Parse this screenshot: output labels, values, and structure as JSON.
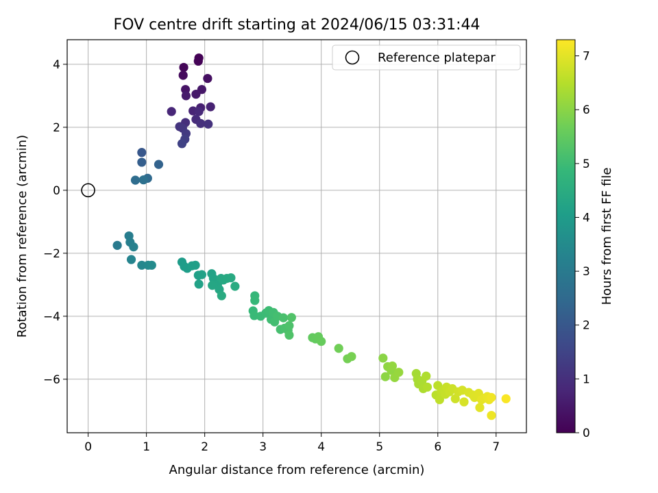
{
  "chart_data": {
    "type": "scatter",
    "title": "FOV centre drift starting at 2024/06/15 03:31:44",
    "xlabel": "Angular distance from reference (arcmin)",
    "ylabel": "Rotation from reference (arcmin)",
    "xlim": [
      -0.36,
      7.52
    ],
    "ylim": [
      -7.7,
      4.78
    ],
    "xticks": [
      0,
      1,
      2,
      3,
      4,
      5,
      6,
      7
    ],
    "yticks": [
      4,
      2,
      0,
      -2,
      -4,
      -6
    ],
    "xtick_labels": [
      "0",
      "1",
      "2",
      "3",
      "4",
      "5",
      "6",
      "7"
    ],
    "ytick_labels": [
      "4",
      "2",
      "0",
      "−2",
      "−4",
      "−6"
    ],
    "grid": true,
    "legend": {
      "position": "top-right",
      "entries": [
        {
          "label": "Reference platepar",
          "marker": "open-circle",
          "color": "#000000",
          "x": 0,
          "y": 0
        }
      ]
    },
    "colorbar": {
      "label": "Hours from first FF file",
      "range": [
        0,
        7.3
      ],
      "ticks": [
        0,
        1,
        2,
        3,
        4,
        5,
        6,
        7
      ],
      "tick_labels": [
        "0",
        "1",
        "2",
        "3",
        "4",
        "5",
        "6",
        "7"
      ],
      "colormap": "viridis",
      "colormap_stops": [
        "#440154",
        "#482878",
        "#3e4989",
        "#31688e",
        "#26828e",
        "#1f9e89",
        "#35b779",
        "#6ece58",
        "#b5de2b",
        "#fde725"
      ]
    },
    "series": [
      {
        "marker": "filled-circle",
        "colored_by": "hours",
        "points": [
          {
            "x": 1.9,
            "y": 4.2,
            "c": 0.02
          },
          {
            "x": 1.89,
            "y": 4.1,
            "c": 0.05
          },
          {
            "x": 1.64,
            "y": 3.9,
            "c": 0.1
          },
          {
            "x": 1.63,
            "y": 3.65,
            "c": 0.2
          },
          {
            "x": 2.05,
            "y": 3.55,
            "c": 0.3
          },
          {
            "x": 1.67,
            "y": 3.2,
            "c": 0.4
          },
          {
            "x": 1.95,
            "y": 3.2,
            "c": 0.45
          },
          {
            "x": 1.85,
            "y": 3.05,
            "c": 0.5
          },
          {
            "x": 1.68,
            "y": 3.0,
            "c": 0.55
          },
          {
            "x": 1.93,
            "y": 2.62,
            "c": 0.65
          },
          {
            "x": 2.1,
            "y": 2.65,
            "c": 0.7
          },
          {
            "x": 1.8,
            "y": 2.52,
            "c": 0.75
          },
          {
            "x": 1.43,
            "y": 2.5,
            "c": 0.8
          },
          {
            "x": 1.9,
            "y": 2.5,
            "c": 0.85
          },
          {
            "x": 1.85,
            "y": 2.25,
            "c": 0.9
          },
          {
            "x": 1.67,
            "y": 2.15,
            "c": 0.95
          },
          {
            "x": 1.93,
            "y": 2.12,
            "c": 1.0
          },
          {
            "x": 2.06,
            "y": 2.1,
            "c": 1.05
          },
          {
            "x": 1.57,
            "y": 2.02,
            "c": 1.1
          },
          {
            "x": 1.62,
            "y": 1.97,
            "c": 1.15
          },
          {
            "x": 1.68,
            "y": 1.8,
            "c": 1.25
          },
          {
            "x": 1.66,
            "y": 1.62,
            "c": 1.35
          },
          {
            "x": 1.61,
            "y": 1.48,
            "c": 1.45
          },
          {
            "x": 0.92,
            "y": 1.2,
            "c": 2.0
          },
          {
            "x": 0.92,
            "y": 0.89,
            "c": 2.2
          },
          {
            "x": 1.21,
            "y": 0.82,
            "c": 2.3
          },
          {
            "x": 1.02,
            "y": 0.38,
            "c": 2.5
          },
          {
            "x": 0.81,
            "y": 0.32,
            "c": 2.6
          },
          {
            "x": 0.95,
            "y": 0.33,
            "c": 2.7
          },
          {
            "x": 0.5,
            "y": -1.75,
            "c": 3.0
          },
          {
            "x": 0.7,
            "y": -1.45,
            "c": 3.1
          },
          {
            "x": 0.72,
            "y": -1.65,
            "c": 3.15
          },
          {
            "x": 0.78,
            "y": -1.8,
            "c": 3.2
          },
          {
            "x": 0.74,
            "y": -2.2,
            "c": 3.3
          },
          {
            "x": 0.92,
            "y": -2.38,
            "c": 3.4
          },
          {
            "x": 1.03,
            "y": -2.38,
            "c": 3.45
          },
          {
            "x": 1.09,
            "y": -2.38,
            "c": 3.5
          },
          {
            "x": 1.61,
            "y": -2.28,
            "c": 4.0
          },
          {
            "x": 1.65,
            "y": -2.42,
            "c": 4.02
          },
          {
            "x": 1.7,
            "y": -2.48,
            "c": 4.05
          },
          {
            "x": 1.78,
            "y": -2.4,
            "c": 4.08
          },
          {
            "x": 1.84,
            "y": -2.38,
            "c": 4.1
          },
          {
            "x": 1.89,
            "y": -2.7,
            "c": 4.12
          },
          {
            "x": 1.95,
            "y": -2.68,
            "c": 4.15
          },
          {
            "x": 1.9,
            "y": -2.98,
            "c": 4.18
          },
          {
            "x": 2.12,
            "y": -2.65,
            "c": 4.2
          },
          {
            "x": 2.15,
            "y": -2.8,
            "c": 4.22
          },
          {
            "x": 2.18,
            "y": -2.9,
            "c": 4.25
          },
          {
            "x": 2.22,
            "y": -3.0,
            "c": 4.28
          },
          {
            "x": 2.13,
            "y": -3.02,
            "c": 4.3
          },
          {
            "x": 2.25,
            "y": -3.15,
            "c": 4.32
          },
          {
            "x": 2.28,
            "y": -2.8,
            "c": 4.35
          },
          {
            "x": 2.32,
            "y": -2.85,
            "c": 4.38
          },
          {
            "x": 2.38,
            "y": -2.8,
            "c": 4.4
          },
          {
            "x": 2.45,
            "y": -2.78,
            "c": 4.42
          },
          {
            "x": 2.29,
            "y": -3.35,
            "c": 4.45
          },
          {
            "x": 2.52,
            "y": -3.05,
            "c": 4.48
          },
          {
            "x": 2.86,
            "y": -3.35,
            "c": 4.85
          },
          {
            "x": 2.86,
            "y": -3.5,
            "c": 4.88
          },
          {
            "x": 2.83,
            "y": -3.83,
            "c": 4.9
          },
          {
            "x": 2.85,
            "y": -3.98,
            "c": 4.92
          },
          {
            "x": 2.96,
            "y": -4.0,
            "c": 4.95
          },
          {
            "x": 3.05,
            "y": -3.9,
            "c": 4.97
          },
          {
            "x": 3.1,
            "y": -3.82,
            "c": 5.0
          },
          {
            "x": 3.14,
            "y": -4.1,
            "c": 5.02
          },
          {
            "x": 3.18,
            "y": -3.88,
            "c": 5.05
          },
          {
            "x": 3.2,
            "y": -4.18,
            "c": 5.07
          },
          {
            "x": 3.25,
            "y": -4.0,
            "c": 5.1
          },
          {
            "x": 3.3,
            "y": -4.42,
            "c": 5.12
          },
          {
            "x": 3.35,
            "y": -4.05,
            "c": 5.15
          },
          {
            "x": 3.37,
            "y": -4.38,
            "c": 5.17
          },
          {
            "x": 3.43,
            "y": -4.45,
            "c": 5.2
          },
          {
            "x": 3.45,
            "y": -4.3,
            "c": 5.22
          },
          {
            "x": 3.45,
            "y": -4.6,
            "c": 5.25
          },
          {
            "x": 3.49,
            "y": -4.04,
            "c": 5.27
          },
          {
            "x": 3.85,
            "y": -4.68,
            "c": 5.5
          },
          {
            "x": 3.9,
            "y": -4.72,
            "c": 5.52
          },
          {
            "x": 3.95,
            "y": -4.65,
            "c": 5.55
          },
          {
            "x": 4.0,
            "y": -4.8,
            "c": 5.57
          },
          {
            "x": 4.3,
            "y": -5.02,
            "c": 5.7
          },
          {
            "x": 4.45,
            "y": -5.35,
            "c": 5.75
          },
          {
            "x": 4.52,
            "y": -5.28,
            "c": 5.78
          },
          {
            "x": 5.06,
            "y": -5.33,
            "c": 6.0
          },
          {
            "x": 5.1,
            "y": -5.92,
            "c": 6.02
          },
          {
            "x": 5.14,
            "y": -5.6,
            "c": 6.05
          },
          {
            "x": 5.2,
            "y": -5.72,
            "c": 6.07
          },
          {
            "x": 5.22,
            "y": -5.58,
            "c": 6.1
          },
          {
            "x": 5.26,
            "y": -5.95,
            "c": 6.12
          },
          {
            "x": 5.33,
            "y": -5.78,
            "c": 6.15
          },
          {
            "x": 5.63,
            "y": -5.82,
            "c": 6.3
          },
          {
            "x": 5.65,
            "y": -6.0,
            "c": 6.32
          },
          {
            "x": 5.67,
            "y": -6.15,
            "c": 6.35
          },
          {
            "x": 5.73,
            "y": -6.05,
            "c": 6.37
          },
          {
            "x": 5.75,
            "y": -6.3,
            "c": 6.4
          },
          {
            "x": 5.8,
            "y": -5.9,
            "c": 6.42
          },
          {
            "x": 5.82,
            "y": -6.25,
            "c": 6.45
          },
          {
            "x": 5.97,
            "y": -6.5,
            "c": 6.55
          },
          {
            "x": 6.0,
            "y": -6.2,
            "c": 6.57
          },
          {
            "x": 6.03,
            "y": -6.65,
            "c": 6.6
          },
          {
            "x": 6.06,
            "y": -6.4,
            "c": 6.62
          },
          {
            "x": 6.1,
            "y": -6.35,
            "c": 6.65
          },
          {
            "x": 6.13,
            "y": -6.48,
            "c": 6.67
          },
          {
            "x": 6.15,
            "y": -6.25,
            "c": 6.7
          },
          {
            "x": 6.2,
            "y": -6.4,
            "c": 6.72
          },
          {
            "x": 6.25,
            "y": -6.3,
            "c": 6.75
          },
          {
            "x": 6.3,
            "y": -6.62,
            "c": 6.77
          },
          {
            "x": 6.35,
            "y": -6.4,
            "c": 6.8
          },
          {
            "x": 6.42,
            "y": -6.35,
            "c": 6.85
          },
          {
            "x": 6.45,
            "y": -6.72,
            "c": 6.87
          },
          {
            "x": 6.53,
            "y": -6.42,
            "c": 6.9
          },
          {
            "x": 6.6,
            "y": -6.5,
            "c": 6.93
          },
          {
            "x": 6.63,
            "y": -6.58,
            "c": 6.95
          },
          {
            "x": 6.7,
            "y": -6.45,
            "c": 6.97
          },
          {
            "x": 6.72,
            "y": -6.9,
            "c": 7.0
          },
          {
            "x": 6.75,
            "y": -6.65,
            "c": 7.03
          },
          {
            "x": 6.8,
            "y": -6.6,
            "c": 7.05
          },
          {
            "x": 6.85,
            "y": -6.55,
            "c": 7.08
          },
          {
            "x": 6.88,
            "y": -6.65,
            "c": 7.1
          },
          {
            "x": 6.92,
            "y": -7.15,
            "c": 7.12
          },
          {
            "x": 6.92,
            "y": -6.58,
            "c": 7.15
          },
          {
            "x": 7.17,
            "y": -6.62,
            "c": 7.25
          }
        ]
      }
    ]
  }
}
